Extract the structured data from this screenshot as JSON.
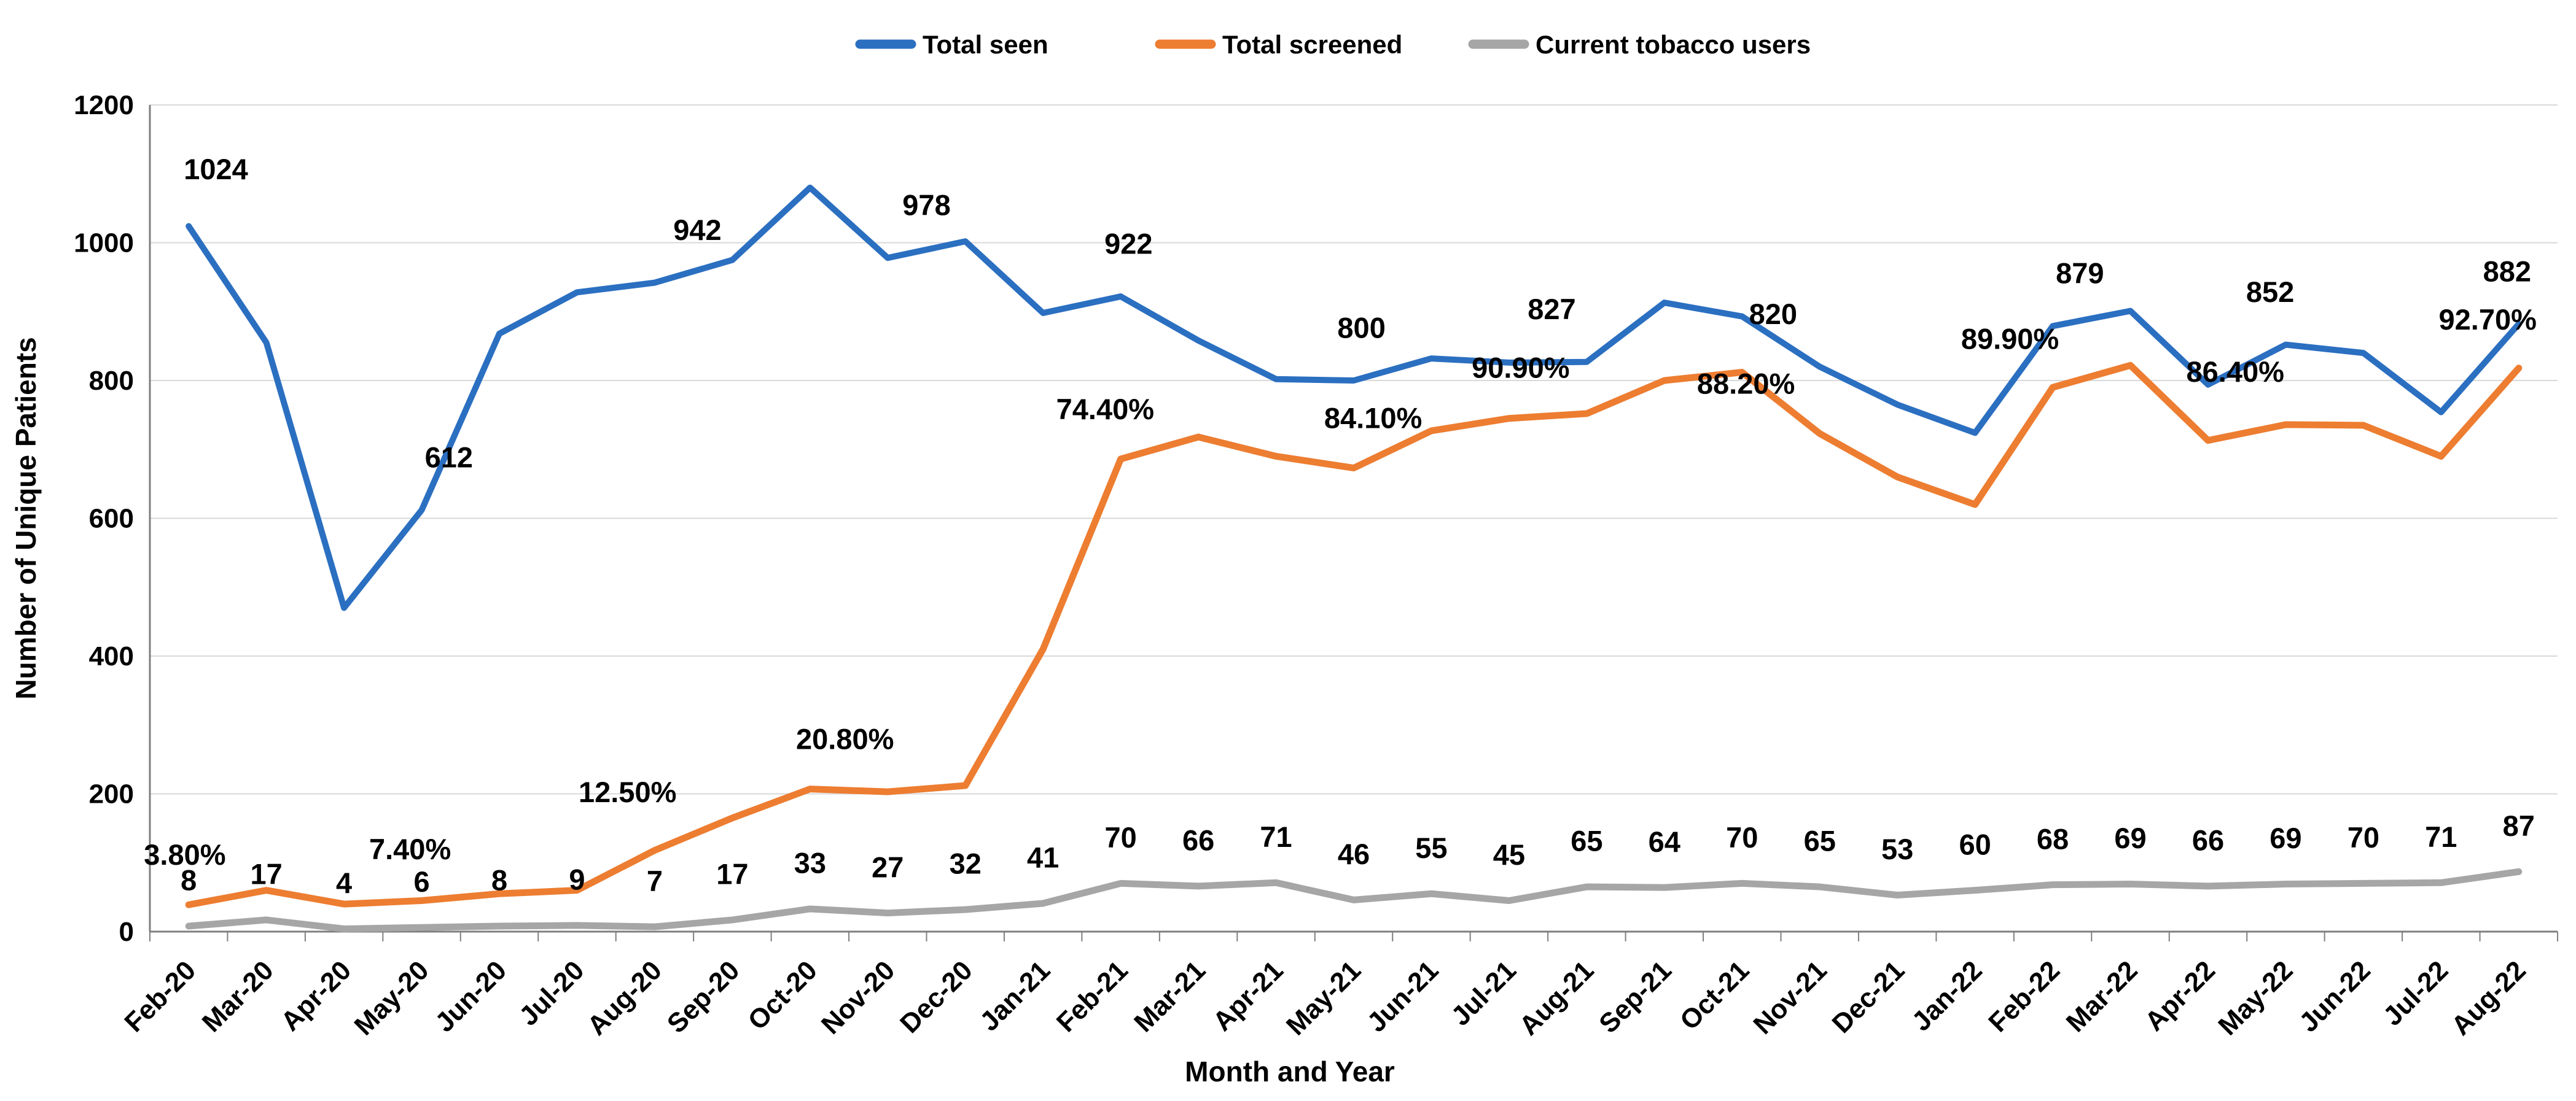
{
  "chart_data": {
    "type": "line",
    "title": "",
    "xlabel": "Month and Year",
    "ylabel": "Number of Unique Patients",
    "ylim": [
      0,
      1200
    ],
    "yticks": [
      0,
      200,
      400,
      600,
      800,
      1000,
      1200
    ],
    "grid": "horizontal",
    "legend_position": "top-center",
    "categories": [
      "Feb-20",
      "Mar-20",
      "Apr-20",
      "May-20",
      "Jun-20",
      "Jul-20",
      "Aug-20",
      "Sep-20",
      "Oct-20",
      "Nov-20",
      "Dec-20",
      "Jan-21",
      "Feb-21",
      "Mar-21",
      "Apr-21",
      "May-21",
      "Jun-21",
      "Jul-21",
      "Aug-21",
      "Sep-21",
      "Oct-21",
      "Nov-21",
      "Dec-21",
      "Jan-22",
      "Feb-22",
      "Mar-22",
      "Apr-22",
      "May-22",
      "Jun-22",
      "Jul-22",
      "Aug-22"
    ],
    "series": [
      {
        "name": "Total seen",
        "color_key": "total_seen",
        "width": 10,
        "values": [
          1024,
          855,
          470,
          612,
          868,
          928,
          942,
          975,
          1080,
          978,
          1002,
          898,
          922,
          858,
          802,
          800,
          832,
          826,
          827,
          913,
          893,
          820,
          765,
          724,
          879,
          901,
          794,
          852,
          840,
          754,
          882
        ],
        "point_labels": [
          {
            "index": 0,
            "text": "1024",
            "dx": 0.35,
            "dy": 68
          },
          {
            "index": 3,
            "text": "612",
            "dx": 0.35,
            "dy": 62
          },
          {
            "index": 6,
            "text": "942",
            "dx": 0.55,
            "dy": 62
          },
          {
            "index": 9,
            "text": "978",
            "dx": 0.5,
            "dy": 62
          },
          {
            "index": 12,
            "text": "922",
            "dx": 0.1,
            "dy": 62
          },
          {
            "index": 15,
            "text": "800",
            "dx": 0.1,
            "dy": 62
          },
          {
            "index": 18,
            "text": "827",
            "dx": -0.45,
            "dy": 62
          },
          {
            "index": 21,
            "text": "820",
            "dx": -0.6,
            "dy": 62
          },
          {
            "index": 24,
            "text": "879",
            "dx": 0.35,
            "dy": 62
          },
          {
            "index": 27,
            "text": "852",
            "dx": -0.2,
            "dy": 62
          },
          {
            "index": 30,
            "text": "882",
            "dx": -0.15,
            "dy": 62
          }
        ]
      },
      {
        "name": "Total screened",
        "color_key": "total_screened",
        "width": 11,
        "values": [
          39,
          60,
          40,
          45,
          55,
          60,
          118,
          165,
          207,
          203,
          212,
          410,
          686,
          718,
          690,
          673,
          727,
          745,
          752,
          800,
          812,
          723,
          660,
          620,
          790,
          822,
          713,
          736,
          735,
          690,
          818
        ],
        "point_labels": [
          {
            "index": 0,
            "text": "3.80%",
            "dx": -0.05,
            "dy": 58
          },
          {
            "index": 3,
            "text": "7.40%",
            "dx": -0.15,
            "dy": 60
          },
          {
            "index": 6,
            "text": "12.50%",
            "dx": -0.35,
            "dy": 70
          },
          {
            "index": 9,
            "text": "20.80%",
            "dx": -0.55,
            "dy": 62
          },
          {
            "index": 12,
            "text": "74.40%",
            "dx": -0.2,
            "dy": 58
          },
          {
            "index": 15,
            "text": "84.10%",
            "dx": 0.25,
            "dy": 58
          },
          {
            "index": 18,
            "text": "90.90%",
            "dx": -0.85,
            "dy": 52
          },
          {
            "index": 21,
            "text": "88.20%",
            "dx": -0.95,
            "dy": 58
          },
          {
            "index": 24,
            "text": "89.90%",
            "dx": -0.55,
            "dy": 56
          },
          {
            "index": 27,
            "text": "86.40%",
            "dx": -0.65,
            "dy": 62
          },
          {
            "index": 30,
            "text": "92.70%",
            "dx": -0.4,
            "dy": 56
          }
        ]
      },
      {
        "name": "Current tobacco users",
        "color_key": "tobacco",
        "width": 11,
        "values": [
          8,
          17,
          4,
          6,
          8,
          9,
          7,
          17,
          33,
          27,
          32,
          41,
          70,
          66,
          71,
          46,
          55,
          45,
          65,
          64,
          70,
          65,
          53,
          60,
          68,
          69,
          66,
          69,
          70,
          71,
          87
        ],
        "label_every_point": true,
        "label_dy": 52
      }
    ]
  },
  "legend": {
    "items": [
      {
        "label": "Total seen",
        "color_key": "total_seen"
      },
      {
        "label": "Total screened",
        "color_key": "total_screened"
      },
      {
        "label": "Current tobacco users",
        "color_key": "tobacco"
      }
    ]
  },
  "colors": {
    "total_seen": "#2B6FC1",
    "total_screened": "#ED7D31",
    "tobacco": "#A6A6A6",
    "grid": "#D9D9D9",
    "axis": "#7F7F7F",
    "label": "#000000"
  }
}
